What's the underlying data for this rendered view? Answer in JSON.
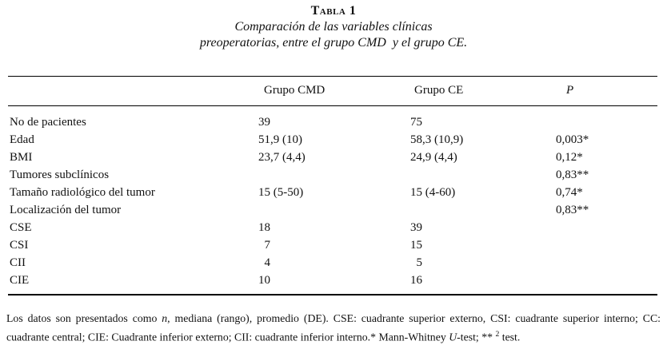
{
  "title": {
    "table_label": "Tabla 1",
    "subtitle_line1": "Comparación de las variables clínicas",
    "subtitle_line2": "preoperatorias, entre el grupo CMD  y el grupo CE."
  },
  "table": {
    "columns": {
      "label": "",
      "cmd": "Grupo CMD",
      "ce": "Grupo CE",
      "p": "P"
    },
    "rows": [
      {
        "label": "No de pacientes",
        "cmd": "39",
        "ce": "75",
        "p": ""
      },
      {
        "label": "Edad",
        "cmd": "51,9 (10)",
        "ce": "58,3 (10,9)",
        "p": "0,003*"
      },
      {
        "label": "BMI",
        "cmd": "23,7 (4,4)",
        "ce": "24,9 (4,4)",
        "p": "0,12*"
      },
      {
        "label": "Tumores subclínicos",
        "cmd": "",
        "ce": "",
        "p": "0,83**"
      },
      {
        "label": "Tamaño radiológico del tumor",
        "cmd": "15 (5-50)",
        "ce": "15 (4-60)",
        "p": "0,74*"
      },
      {
        "label": "Localización del tumor",
        "cmd": "",
        "ce": "",
        "p": "0,83**"
      },
      {
        "label": "CSE",
        "cmd": "18",
        "ce": "39",
        "p": ""
      },
      {
        "label": "CSI",
        "cmd": "7",
        "ce": "15",
        "p": ""
      },
      {
        "label": "CII",
        "cmd": "4",
        "ce": "5",
        "p": ""
      },
      {
        "label": "CIE",
        "cmd": "10",
        "ce": "16",
        "p": ""
      }
    ]
  },
  "footnote": {
    "segments": [
      {
        "text": "Los datos son presentados como ",
        "style": "normal"
      },
      {
        "text": "n",
        "style": "italic"
      },
      {
        "text": ", mediana (rango), promedio (DE). CSE: cuadrante superior externo, CSI: cuadrante superior interno; CC: cuadrante central; CIE: Cuadrante inferior externo; CII: cuadrante inferior interno.* Mann-Whitney ",
        "style": "normal"
      },
      {
        "text": "U",
        "style": "italic"
      },
      {
        "text": "-test; ** ",
        "style": "normal"
      },
      {
        "text": "2",
        "style": "super"
      },
      {
        "text": " test.",
        "style": "normal"
      }
    ]
  },
  "colors": {
    "background": "#ffffff",
    "text": "#111111",
    "rule": "#000000"
  }
}
